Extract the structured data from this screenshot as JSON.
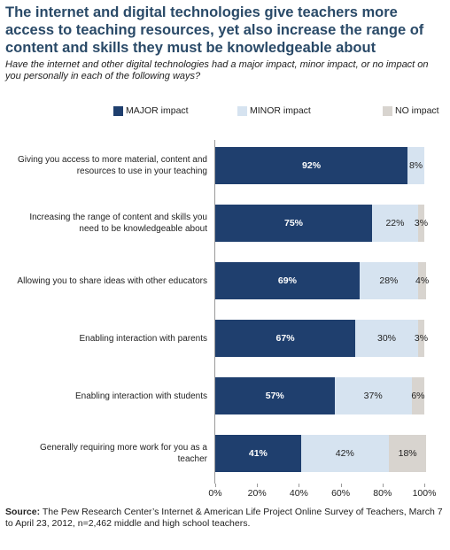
{
  "chart_data": {
    "type": "stacked-bar",
    "title": "The internet and digital technologies give teachers more access to teaching resources, yet also increase the range of content and skills they must be knowledgeable about",
    "subtitle": "Have the internet and other digital technologies had a major impact, minor impact, or no impact on you personally in each of the following ways?",
    "categories": [
      "Giving you access to more material, content and resources to use in your teaching",
      "Increasing the range of content and skills you need to be knowledgeable about",
      "Allowing you to share ideas with other educators",
      "Enabling interaction with parents",
      "Enabling interaction with students",
      "Generally requiring more work for you as a teacher"
    ],
    "series": [
      {
        "name": "MAJOR impact",
        "color": "#1f3f6e",
        "label_color": "#ffffff",
        "values": [
          92,
          75,
          69,
          67,
          57,
          41
        ],
        "value_labels": [
          "92%",
          "75%",
          "69%",
          "67%",
          "57%",
          "41%"
        ]
      },
      {
        "name": "MINOR impact",
        "color": "#d6e3f0",
        "label_color": "#222222",
        "values": [
          8,
          22,
          28,
          30,
          37,
          42
        ],
        "value_labels": [
          "8%",
          "22%",
          "28%",
          "30%",
          "37%",
          "42%"
        ]
      },
      {
        "name": "NO impact",
        "color": "#d8d4cf",
        "label_color": "#222222",
        "values": [
          null,
          3,
          4,
          3,
          6,
          18
        ],
        "value_labels": [
          null,
          "3%",
          "4%",
          "3%",
          "6%",
          "18%"
        ]
      }
    ],
    "xlim": [
      0,
      100
    ],
    "xticks": [
      {
        "value": 0,
        "label": "0%"
      },
      {
        "value": 20,
        "label": "20%"
      },
      {
        "value": 40,
        "label": "40%"
      },
      {
        "value": 60,
        "label": "60%"
      },
      {
        "value": 80,
        "label": "80%"
      },
      {
        "value": 100,
        "label": "100%"
      }
    ],
    "source_label": "Source:",
    "source": "The Pew Research Center’s Internet & American Life Project Online Survey of Teachers, March 7 to April 23, 2012, n=2,462 middle and high school teachers."
  }
}
